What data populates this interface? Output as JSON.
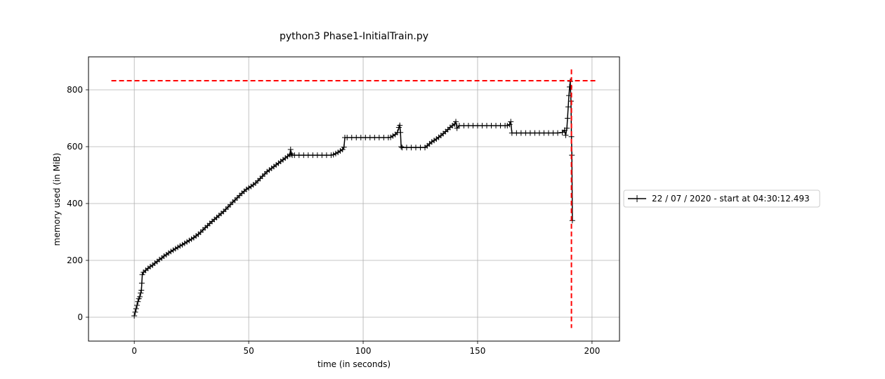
{
  "chart_data": {
    "type": "line",
    "title": "python3 Phase1-InitialTrain.py",
    "xlabel": "time (in seconds)",
    "ylabel": "memory used (in MiB)",
    "xlim": [
      -20,
      212
    ],
    "ylim": [
      -84,
      916
    ],
    "xticks": [
      0,
      50,
      100,
      150,
      200
    ],
    "yticks": [
      0,
      200,
      400,
      600,
      800
    ],
    "grid": true,
    "legend_position": "right, outside plot",
    "series": [
      {
        "name": "22 / 07 / 2020 - start at 04:30:12.493",
        "color": "#000000",
        "marker": "+",
        "points": [
          [
            0,
            5
          ],
          [
            0.4,
            18
          ],
          [
            0.8,
            30
          ],
          [
            1.2,
            42
          ],
          [
            1.6,
            55
          ],
          [
            2.0,
            65
          ],
          [
            2.4,
            72
          ],
          [
            2.8,
            85
          ],
          [
            3.1,
            95
          ],
          [
            3.3,
            120
          ],
          [
            3.5,
            150
          ],
          [
            4,
            158
          ],
          [
            5,
            165
          ],
          [
            6,
            172
          ],
          [
            7,
            178
          ],
          [
            8,
            183
          ],
          [
            9,
            190
          ],
          [
            10,
            196
          ],
          [
            11,
            203
          ],
          [
            12,
            208
          ],
          [
            13,
            215
          ],
          [
            14,
            220
          ],
          [
            15,
            226
          ],
          [
            16,
            231
          ],
          [
            17,
            236
          ],
          [
            18,
            241
          ],
          [
            19,
            246
          ],
          [
            20,
            251
          ],
          [
            21,
            255
          ],
          [
            22,
            260
          ],
          [
            23,
            265
          ],
          [
            24,
            270
          ],
          [
            25,
            275
          ],
          [
            26,
            280
          ],
          [
            27,
            286
          ],
          [
            28,
            292
          ],
          [
            29,
            299
          ],
          [
            30,
            307
          ],
          [
            31,
            315
          ],
          [
            32,
            322
          ],
          [
            33,
            330
          ],
          [
            34,
            337
          ],
          [
            35,
            344
          ],
          [
            36,
            351
          ],
          [
            37,
            358
          ],
          [
            38,
            365
          ],
          [
            39,
            372
          ],
          [
            40,
            380
          ],
          [
            41,
            388
          ],
          [
            42,
            396
          ],
          [
            43,
            405
          ],
          [
            44,
            412
          ],
          [
            45,
            420
          ],
          [
            46,
            428
          ],
          [
            47,
            436
          ],
          [
            48,
            443
          ],
          [
            49,
            450
          ],
          [
            50,
            455
          ],
          [
            51,
            460
          ],
          [
            52,
            466
          ],
          [
            53,
            472
          ],
          [
            54,
            480
          ],
          [
            55,
            488
          ],
          [
            56,
            496
          ],
          [
            57,
            504
          ],
          [
            58,
            512
          ],
          [
            59,
            518
          ],
          [
            60,
            524
          ],
          [
            61,
            530
          ],
          [
            62,
            536
          ],
          [
            63,
            542
          ],
          [
            64,
            548
          ],
          [
            65,
            554
          ],
          [
            66,
            560
          ],
          [
            67,
            566
          ],
          [
            68,
            572
          ],
          [
            68.3,
            590
          ],
          [
            68.6,
            575
          ],
          [
            69,
            570
          ],
          [
            70,
            570
          ],
          [
            72,
            570
          ],
          [
            74,
            570
          ],
          [
            76,
            570
          ],
          [
            78,
            570
          ],
          [
            80,
            570
          ],
          [
            82,
            570
          ],
          [
            84,
            570
          ],
          [
            86,
            570
          ],
          [
            87,
            572
          ],
          [
            88,
            576
          ],
          [
            89,
            580
          ],
          [
            90,
            585
          ],
          [
            91,
            590
          ],
          [
            91.6,
            598
          ],
          [
            92,
            632
          ],
          [
            93,
            632
          ],
          [
            95,
            632
          ],
          [
            97,
            632
          ],
          [
            99,
            632
          ],
          [
            101,
            632
          ],
          [
            103,
            632
          ],
          [
            105,
            632
          ],
          [
            107,
            632
          ],
          [
            109,
            632
          ],
          [
            111,
            632
          ],
          [
            112,
            633
          ],
          [
            113,
            638
          ],
          [
            114,
            643
          ],
          [
            115,
            650
          ],
          [
            115.6,
            668
          ],
          [
            116,
            675
          ],
          [
            116.3,
            650
          ],
          [
            116.6,
            600
          ],
          [
            117,
            597
          ],
          [
            119,
            597
          ],
          [
            121,
            597
          ],
          [
            123,
            597
          ],
          [
            125,
            597
          ],
          [
            127,
            597
          ],
          [
            128,
            603
          ],
          [
            129,
            610
          ],
          [
            130,
            617
          ],
          [
            131,
            622
          ],
          [
            132,
            627
          ],
          [
            133,
            633
          ],
          [
            134,
            639
          ],
          [
            135,
            646
          ],
          [
            136,
            653
          ],
          [
            137,
            660
          ],
          [
            138,
            668
          ],
          [
            139,
            674
          ],
          [
            140,
            680
          ],
          [
            140.5,
            688
          ],
          [
            141,
            665
          ],
          [
            142,
            674
          ],
          [
            144,
            674
          ],
          [
            146,
            674
          ],
          [
            148,
            674
          ],
          [
            150,
            674
          ],
          [
            152,
            674
          ],
          [
            154,
            674
          ],
          [
            156,
            674
          ],
          [
            158,
            674
          ],
          [
            160,
            674
          ],
          [
            162,
            674
          ],
          [
            163,
            674
          ],
          [
            164,
            678
          ],
          [
            164.5,
            688
          ],
          [
            165,
            648
          ],
          [
            167,
            648
          ],
          [
            169,
            648
          ],
          [
            171,
            648
          ],
          [
            173,
            648
          ],
          [
            175,
            648
          ],
          [
            177,
            648
          ],
          [
            179,
            648
          ],
          [
            181,
            648
          ],
          [
            183,
            648
          ],
          [
            185,
            648
          ],
          [
            187,
            650
          ],
          [
            188,
            658
          ],
          [
            188.5,
            640
          ],
          [
            189,
            665
          ],
          [
            189.3,
            700
          ],
          [
            189.6,
            740
          ],
          [
            189.9,
            780
          ],
          [
            190.2,
            810
          ],
          [
            190.5,
            830
          ],
          [
            190.8,
            760
          ],
          [
            191,
            635
          ],
          [
            191.2,
            570
          ],
          [
            191.4,
            340
          ]
        ]
      }
    ],
    "reference_lines": [
      {
        "orientation": "horizontal",
        "value": 832,
        "from": -10,
        "to": 202,
        "color": "#ff0000",
        "style": "dashed"
      },
      {
        "orientation": "vertical",
        "value": 191,
        "from": -38,
        "to": 872,
        "color": "#ff0000",
        "style": "dashed"
      }
    ]
  }
}
